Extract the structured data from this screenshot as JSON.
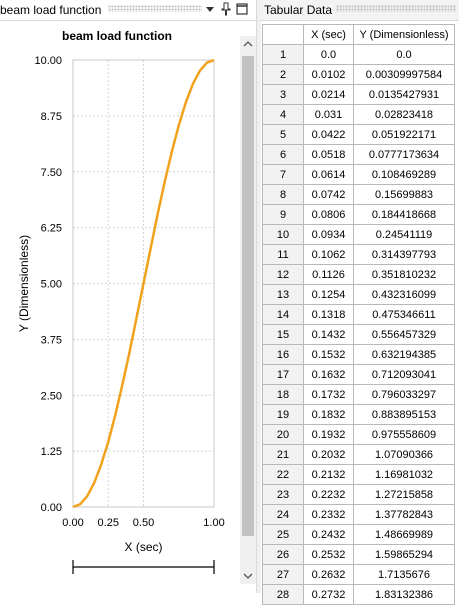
{
  "left_panel": {
    "title": "beam load function"
  },
  "right_panel": {
    "title": "Tabular Data"
  },
  "chart_data": {
    "type": "line",
    "title": "beam load function",
    "xlabel": "X (sec)",
    "ylabel": "Y (Dimensionless)",
    "xlim": [
      0,
      1
    ],
    "ylim": [
      0,
      10
    ],
    "x_ticks": [
      "0.00",
      "0.25",
      "0.50",
      "1.00"
    ],
    "y_ticks": [
      "0.00",
      "1.25",
      "2.50",
      "3.75",
      "5.00",
      "6.25",
      "7.50",
      "8.75",
      "10.00"
    ],
    "series_color": "#f0a21c",
    "grid": true,
    "x": [
      0,
      0.05,
      0.1,
      0.15,
      0.2,
      0.25,
      0.3,
      0.35,
      0.4,
      0.45,
      0.5,
      0.55,
      0.6,
      0.65,
      0.7,
      0.75,
      0.8,
      0.85,
      0.9,
      0.95,
      1.0
    ],
    "y": [
      0,
      0.06,
      0.24,
      0.54,
      0.95,
      1.46,
      2.06,
      2.73,
      3.45,
      4.22,
      5.0,
      5.78,
      6.55,
      7.27,
      7.94,
      8.54,
      9.05,
      9.46,
      9.76,
      9.94,
      10.0
    ]
  },
  "table": {
    "headers": [
      "",
      "X (sec)",
      "Y (Dimensionless)"
    ],
    "rows": [
      [
        "1",
        "0.0",
        "0.0"
      ],
      [
        "2",
        "0.0102",
        "0.00309997584"
      ],
      [
        "3",
        "0.0214",
        "0.0135427931"
      ],
      [
        "4",
        "0.031",
        "0.02823418"
      ],
      [
        "5",
        "0.0422",
        "0.051922171"
      ],
      [
        "6",
        "0.0518",
        "0.0777173634"
      ],
      [
        "7",
        "0.0614",
        "0.108469289"
      ],
      [
        "8",
        "0.0742",
        "0.15699883"
      ],
      [
        "9",
        "0.0806",
        "0.184418668"
      ],
      [
        "10",
        "0.0934",
        "0.24541119"
      ],
      [
        "11",
        "0.1062",
        "0.314397793"
      ],
      [
        "12",
        "0.1126",
        "0.351810232"
      ],
      [
        "13",
        "0.1254",
        "0.432316099"
      ],
      [
        "14",
        "0.1318",
        "0.475346611"
      ],
      [
        "15",
        "0.1432",
        "0.556457329"
      ],
      [
        "16",
        "0.1532",
        "0.632194385"
      ],
      [
        "17",
        "0.1632",
        "0.712093041"
      ],
      [
        "18",
        "0.1732",
        "0.796033297"
      ],
      [
        "19",
        "0.1832",
        "0.883895153"
      ],
      [
        "20",
        "0.1932",
        "0.975558609"
      ],
      [
        "21",
        "0.2032",
        "1.07090366"
      ],
      [
        "22",
        "0.2132",
        "1.16981032"
      ],
      [
        "23",
        "0.2232",
        "1.27215858"
      ],
      [
        "24",
        "0.2332",
        "1.37782843"
      ],
      [
        "25",
        "0.2432",
        "1.48669989"
      ],
      [
        "26",
        "0.2532",
        "1.59865294"
      ],
      [
        "27",
        "0.2632",
        "1.7135676"
      ],
      [
        "28",
        "0.2732",
        "1.83132386"
      ]
    ]
  }
}
